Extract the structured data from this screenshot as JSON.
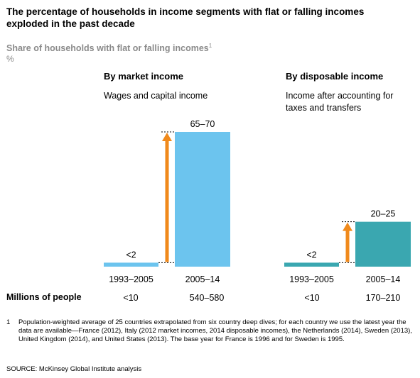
{
  "title": "The percentage of households in income segments with flat or falling incomes exploded in the past decade",
  "subtitle": "Share of households with flat or falling incomes",
  "subtitle_note": "1",
  "unit": "%",
  "panels": [
    {
      "title": "By market income",
      "subtitle": "Wages and capital income"
    },
    {
      "title": "By disposable income",
      "subtitle": "Income after accounting for taxes and transfers"
    }
  ],
  "people": {
    "label": "Millions of people",
    "values": [
      "<10",
      "540–580",
      "<10",
      "170–210"
    ]
  },
  "footnote": {
    "number": "1",
    "text": "Population-weighted average of 25 countries extrapolated from six country deep dives; for each country we use the latest year the data are available—France (2012), Italy (2012 market incomes, 2014 disposable incomes), the Netherlands (2014), Sweden (2013), United Kingdom (2014), and United States (2013). The base year for France is 1996 and for Sweden is 1995."
  },
  "source": "SOURCE: McKinsey Global Institute analysis",
  "colors": {
    "market_bar": "#6cc4ee",
    "disposable_bar": "#3aa7b0",
    "arrow": "#f08a1c"
  },
  "chart_data": [
    {
      "type": "bar",
      "categories": [
        "1993–2005",
        "2005–14"
      ],
      "values": [
        2,
        67.5
      ],
      "labels": [
        "<2",
        "65–70"
      ],
      "ylim": [
        0,
        70
      ]
    },
    {
      "type": "bar",
      "categories": [
        "1993–2005",
        "2005–14"
      ],
      "values": [
        2,
        22.5
      ],
      "labels": [
        "<2",
        "20–25"
      ],
      "ylim": [
        0,
        70
      ]
    }
  ]
}
